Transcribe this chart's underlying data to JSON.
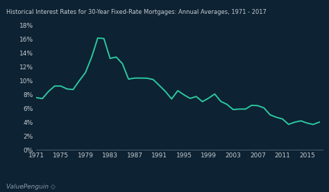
{
  "title": "Historical Interest Rates for 30-Year Fixed-Rate Mortgages: Annual Averages, 1971 - 2017",
  "background_color": "#0d2233",
  "line_color": "#2dc9a0",
  "text_color": "#c8cdd0",
  "ylim": [
    0,
    0.18
  ],
  "yticks": [
    0.0,
    0.02,
    0.04,
    0.06,
    0.08,
    0.1,
    0.12,
    0.14,
    0.16,
    0.18
  ],
  "ytick_labels": [
    "0%",
    "2%",
    "4%",
    "6%",
    "8%",
    "10%",
    "12%",
    "14%",
    "16%",
    "18%"
  ],
  "xtick_labels": [
    "1971",
    "1975",
    "1979",
    "1983",
    "1987",
    "1991",
    "1995",
    "1999",
    "2003",
    "2007",
    "2011",
    "2015"
  ],
  "xtick_positions": [
    1971,
    1975,
    1979,
    1983,
    1987,
    1991,
    1995,
    1999,
    2003,
    2007,
    2011,
    2015
  ],
  "xlim": [
    1971,
    2017.5
  ],
  "watermark": "ValuePenguin ◇",
  "years": [
    1971,
    1972,
    1973,
    1974,
    1975,
    1976,
    1977,
    1978,
    1979,
    1980,
    1981,
    1982,
    1983,
    1984,
    1985,
    1986,
    1987,
    1988,
    1989,
    1990,
    1991,
    1992,
    1993,
    1994,
    1995,
    1996,
    1997,
    1998,
    1999,
    2000,
    2001,
    2002,
    2003,
    2004,
    2005,
    2006,
    2007,
    2008,
    2009,
    2010,
    2011,
    2012,
    2013,
    2014,
    2015,
    2016,
    2017
  ],
  "rates": [
    0.0752,
    0.0738,
    0.0841,
    0.0919,
    0.0919,
    0.0877,
    0.0869,
    0.0995,
    0.1113,
    0.1334,
    0.1612,
    0.1604,
    0.1318,
    0.1337,
    0.1243,
    0.1019,
    0.1034,
    0.1034,
    0.1032,
    0.1013,
    0.0928,
    0.084,
    0.0733,
    0.0852,
    0.0793,
    0.0741,
    0.0768,
    0.0694,
    0.0744,
    0.0804,
    0.0697,
    0.0654,
    0.058,
    0.0587,
    0.0587,
    0.0641,
    0.0636,
    0.0604,
    0.0504,
    0.0469,
    0.0445,
    0.0366,
    0.0398,
    0.0417,
    0.0385,
    0.0365,
    0.0399
  ]
}
